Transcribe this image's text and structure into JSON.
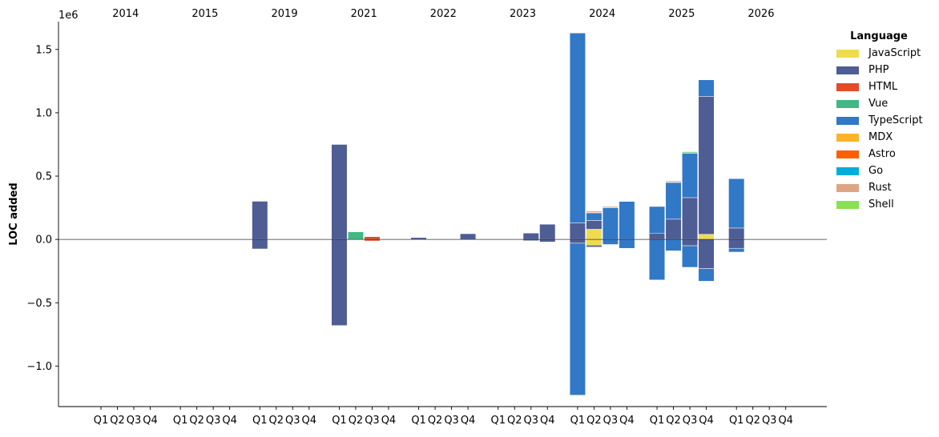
{
  "chart_data": {
    "type": "bar",
    "stacked": true,
    "scale_label": "1e6",
    "ylabel": "LOC added",
    "ylim": [
      -1.32,
      1.72
    ],
    "yticks": [
      -1.0,
      -0.5,
      0.0,
      0.5,
      1.0,
      1.5
    ],
    "ytick_labels": [
      "−1.0",
      "−0.5",
      "0.0",
      "0.5",
      "1.0",
      "1.5"
    ],
    "years": [
      "2014",
      "2015",
      "2019",
      "2021",
      "2022",
      "2023",
      "2024",
      "2025",
      "2026"
    ],
    "quarters": [
      "Q1",
      "Q2",
      "Q3",
      "Q4"
    ],
    "grid": false,
    "zero_line": true,
    "legend": {
      "title": "Language",
      "placement": "right",
      "entries": [
        {
          "name": "JavaScript",
          "color": "#F0DB4F"
        },
        {
          "name": "PHP",
          "color": "#4F5D95"
        },
        {
          "name": "HTML",
          "color": "#E34C26"
        },
        {
          "name": "Vue",
          "color": "#41B883"
        },
        {
          "name": "TypeScript",
          "color": "#3178C6"
        },
        {
          "name": "MDX",
          "color": "#FCB32C"
        },
        {
          "name": "Astro",
          "color": "#FF5D01"
        },
        {
          "name": "Go",
          "color": "#00ADD8"
        },
        {
          "name": "Rust",
          "color": "#DEA584"
        },
        {
          "name": "Shell",
          "color": "#89E051"
        }
      ]
    },
    "bars": [
      {
        "year": "2019",
        "quarter": "Q1",
        "segments": [
          {
            "lang": "PHP",
            "from": 0,
            "to": 0.3
          },
          {
            "lang": "HTML",
            "from": 0.3,
            "to": 0.305
          },
          {
            "lang": "PHP",
            "from": -0.075,
            "to": 0
          }
        ]
      },
      {
        "year": "2021",
        "quarter": "Q1",
        "segments": [
          {
            "lang": "PHP",
            "from": 0,
            "to": 0.75
          },
          {
            "lang": "PHP",
            "from": -0.68,
            "to": 0
          }
        ]
      },
      {
        "year": "2021",
        "quarter": "Q2",
        "segments": [
          {
            "lang": "Vue",
            "from": 0,
            "to": 0.06
          }
        ]
      },
      {
        "year": "2021",
        "quarter": "Q3",
        "segments": [
          {
            "lang": "HTML",
            "from": 0,
            "to": 0.022
          },
          {
            "lang": "HTML",
            "from": -0.012,
            "to": 0
          }
        ]
      },
      {
        "year": "2022",
        "quarter": "Q1",
        "segments": [
          {
            "lang": "PHP",
            "from": 0,
            "to": 0.015
          }
        ]
      },
      {
        "year": "2022",
        "quarter": "Q4",
        "segments": [
          {
            "lang": "PHP",
            "from": 0,
            "to": 0.045
          }
        ]
      },
      {
        "year": "2023",
        "quarter": "Q3",
        "segments": [
          {
            "lang": "PHP",
            "from": 0,
            "to": 0.05
          },
          {
            "lang": "PHP",
            "from": -0.01,
            "to": 0
          }
        ]
      },
      {
        "year": "2023",
        "quarter": "Q4",
        "segments": [
          {
            "lang": "PHP",
            "from": 0,
            "to": 0.12
          },
          {
            "lang": "PHP",
            "from": -0.02,
            "to": 0
          }
        ]
      },
      {
        "year": "2024",
        "quarter": "Q1",
        "segments": [
          {
            "lang": "PHP",
            "from": 0,
            "to": 0.13
          },
          {
            "lang": "TypeScript",
            "from": 0.13,
            "to": 1.63
          },
          {
            "lang": "PHP",
            "from": -0.03,
            "to": 0
          },
          {
            "lang": "TypeScript",
            "from": -1.23,
            "to": -0.03
          }
        ]
      },
      {
        "year": "2024",
        "quarter": "Q2",
        "segments": [
          {
            "lang": "JavaScript",
            "from": 0,
            "to": 0.08
          },
          {
            "lang": "PHP",
            "from": 0.08,
            "to": 0.15
          },
          {
            "lang": "TypeScript",
            "from": 0.15,
            "to": 0.21
          },
          {
            "lang": "HTML",
            "from": 0.21,
            "to": 0.215
          },
          {
            "lang": "Astro",
            "from": 0.215,
            "to": 0.222
          },
          {
            "lang": "JavaScript",
            "from": -0.045,
            "to": 0
          },
          {
            "lang": "PHP",
            "from": -0.06,
            "to": -0.045
          }
        ]
      },
      {
        "year": "2024",
        "quarter": "Q3",
        "segments": [
          {
            "lang": "TypeScript",
            "from": 0,
            "to": 0.25
          },
          {
            "lang": "Rust",
            "from": 0.25,
            "to": 0.26
          },
          {
            "lang": "TypeScript",
            "from": -0.04,
            "to": 0
          }
        ]
      },
      {
        "year": "2024",
        "quarter": "Q4",
        "segments": [
          {
            "lang": "TypeScript",
            "from": 0,
            "to": 0.3
          },
          {
            "lang": "TypeScript",
            "from": -0.07,
            "to": 0
          }
        ]
      },
      {
        "year": "2025",
        "quarter": "Q1",
        "segments": [
          {
            "lang": "PHP",
            "from": 0,
            "to": 0.05
          },
          {
            "lang": "TypeScript",
            "from": 0.05,
            "to": 0.26
          },
          {
            "lang": "TypeScript",
            "from": -0.32,
            "to": 0
          }
        ]
      },
      {
        "year": "2025",
        "quarter": "Q2",
        "segments": [
          {
            "lang": "PHP",
            "from": 0,
            "to": 0.16
          },
          {
            "lang": "TypeScript",
            "from": 0.16,
            "to": 0.45
          },
          {
            "lang": "Rust",
            "from": 0.45,
            "to": 0.456
          },
          {
            "lang": "HTML",
            "from": 0.456,
            "to": 0.462
          },
          {
            "lang": "TypeScript",
            "from": -0.09,
            "to": 0
          }
        ]
      },
      {
        "year": "2025",
        "quarter": "Q3",
        "segments": [
          {
            "lang": "PHP",
            "from": 0,
            "to": 0.33
          },
          {
            "lang": "TypeScript",
            "from": 0.33,
            "to": 0.68
          },
          {
            "lang": "Vue",
            "from": 0.68,
            "to": 0.69
          },
          {
            "lang": "Shell",
            "from": 0.69,
            "to": 0.695
          },
          {
            "lang": "PHP",
            "from": -0.05,
            "to": 0
          },
          {
            "lang": "TypeScript",
            "from": -0.22,
            "to": -0.05
          }
        ]
      },
      {
        "year": "2025",
        "quarter": "Q4",
        "segments": [
          {
            "lang": "JavaScript",
            "from": 0,
            "to": 0.04
          },
          {
            "lang": "PHP",
            "from": 0.04,
            "to": 1.13
          },
          {
            "lang": "TypeScript",
            "from": 1.13,
            "to": 1.26
          },
          {
            "lang": "PHP",
            "from": -0.23,
            "to": 0
          },
          {
            "lang": "TypeScript",
            "from": -0.33,
            "to": -0.23
          }
        ]
      },
      {
        "year": "2026",
        "quarter": "Q1",
        "segments": [
          {
            "lang": "PHP",
            "from": 0,
            "to": 0.09
          },
          {
            "lang": "TypeScript",
            "from": 0.09,
            "to": 0.48
          },
          {
            "lang": "PHP",
            "from": -0.07,
            "to": 0
          },
          {
            "lang": "TypeScript",
            "from": -0.1,
            "to": -0.07
          }
        ]
      }
    ]
  }
}
